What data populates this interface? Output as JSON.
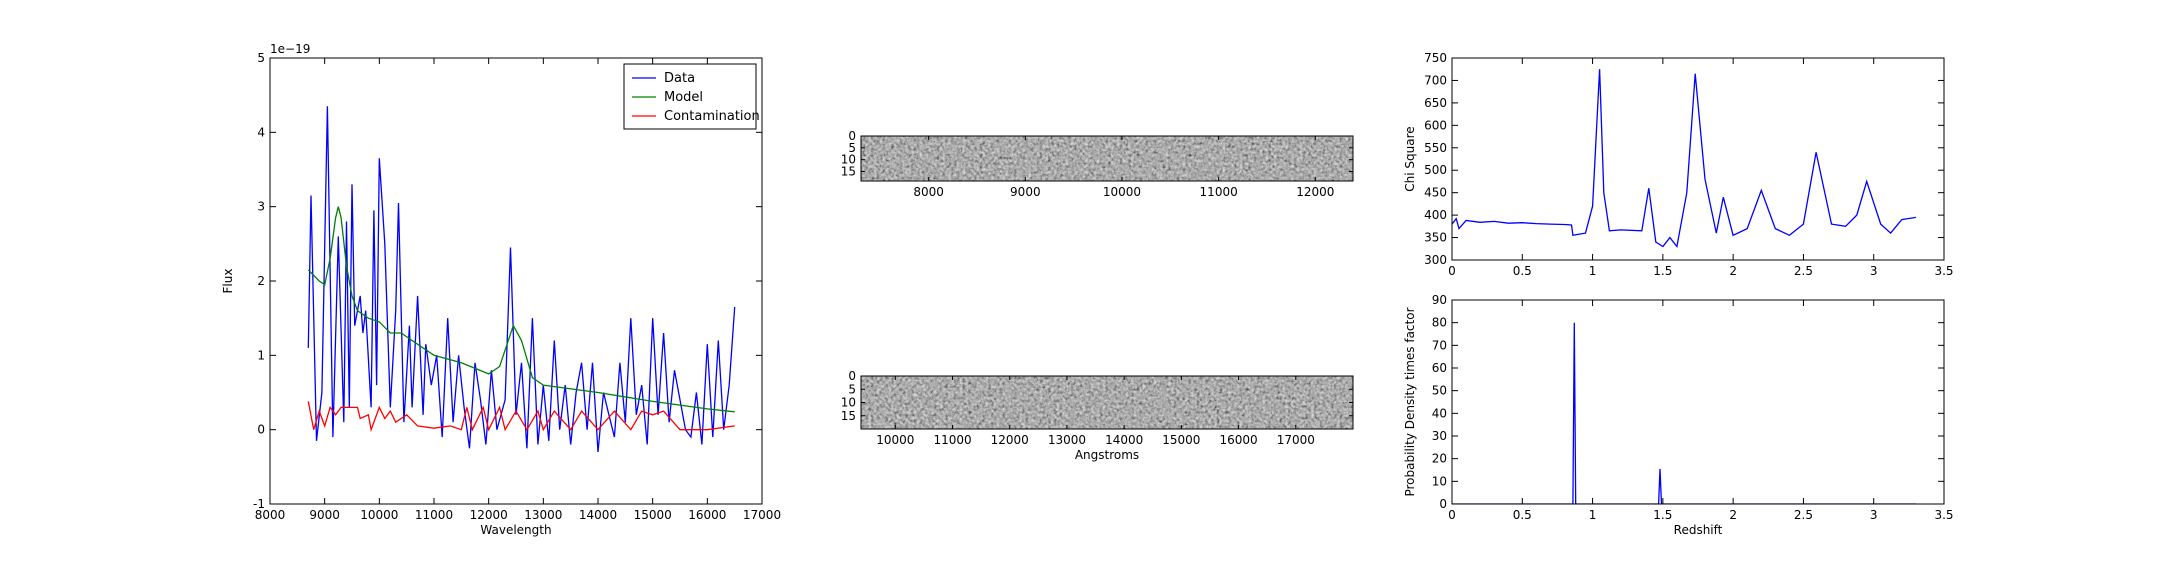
{
  "chart_data": [
    {
      "type": "line",
      "xlabel": "Wavelength",
      "ylabel": "Flux",
      "offset_label": "1e−19",
      "xlim": [
        8000,
        17000
      ],
      "xticks": [
        8000,
        9000,
        10000,
        11000,
        12000,
        13000,
        14000,
        15000,
        16000,
        17000
      ],
      "ylim": [
        -1,
        5
      ],
      "yticks": [
        -1,
        0,
        1,
        2,
        3,
        4,
        5
      ],
      "legend": "upper right",
      "series": [
        {
          "name": "Data",
          "color": "#0000ff",
          "x": [
            8700,
            8750,
            8850,
            8950,
            9050,
            9150,
            9250,
            9350,
            9400,
            9450,
            9500,
            9550,
            9650,
            9700,
            9750,
            9850,
            9900,
            9950,
            10000,
            10100,
            10200,
            10300,
            10350,
            10450,
            10550,
            10600,
            10700,
            10800,
            10850,
            10950,
            11050,
            11150,
            11250,
            11350,
            11450,
            11550,
            11650,
            11750,
            11850,
            11950,
            12050,
            12150,
            12300,
            12400,
            12500,
            12600,
            12700,
            12800,
            12900,
            13000,
            13100,
            13200,
            13300,
            13400,
            13500,
            13600,
            13700,
            13800,
            13900,
            14000,
            14100,
            14200,
            14300,
            14400,
            14500,
            14600,
            14700,
            14800,
            14900,
            15000,
            15100,
            15200,
            15300,
            15400,
            15500,
            15600,
            15700,
            15800,
            15900,
            16000,
            16100,
            16200,
            16300,
            16400,
            16500
          ],
          "values": [
            1.1,
            3.15,
            -0.15,
            0.5,
            4.35,
            -0.1,
            2.6,
            0.1,
            2.8,
            0.3,
            3.3,
            1.4,
            1.8,
            1.3,
            1.6,
            0.3,
            2.95,
            0.6,
            3.65,
            2.5,
            0.3,
            1.6,
            3.05,
            0.1,
            1.4,
            0.3,
            1.8,
            0.2,
            1.15,
            0.6,
            1.0,
            -0.1,
            1.5,
            0.1,
            1.0,
            0.3,
            -0.25,
            0.9,
            0.4,
            -0.2,
            0.8,
            0.0,
            0.4,
            2.45,
            0.2,
            0.9,
            -0.25,
            1.5,
            -0.2,
            0.6,
            -0.15,
            1.2,
            0.0,
            0.6,
            -0.2,
            0.5,
            0.9,
            0.0,
            0.9,
            -0.3,
            0.5,
            0.2,
            -0.1,
            0.9,
            0.1,
            1.5,
            0.2,
            0.6,
            -0.2,
            1.5,
            0.2,
            1.3,
            0.1,
            0.8,
            0.4,
            0.0,
            -0.1,
            0.5,
            -0.2,
            1.15,
            -0.1,
            1.2,
            0.0,
            0.6,
            1.65
          ]
        },
        {
          "name": "Model",
          "color": "#008000",
          "x": [
            8700,
            8900,
            9000,
            9100,
            9200,
            9250,
            9300,
            9400,
            9500,
            9600,
            9800,
            10000,
            10200,
            10400,
            10600,
            10800,
            11000,
            11500,
            12000,
            12200,
            12450,
            12600,
            12800,
            13000,
            14000,
            15000,
            16000,
            16500
          ],
          "values": [
            2.15,
            2.0,
            1.95,
            2.3,
            2.85,
            3.0,
            2.85,
            2.2,
            1.8,
            1.6,
            1.5,
            1.45,
            1.3,
            1.3,
            1.2,
            1.1,
            1.0,
            0.9,
            0.75,
            0.85,
            1.4,
            1.2,
            0.7,
            0.6,
            0.5,
            0.38,
            0.28,
            0.24
          ]
        },
        {
          "name": "Contamination",
          "color": "#ff0000",
          "x": [
            8700,
            8800,
            8900,
            9000,
            9100,
            9200,
            9300,
            9600,
            9650,
            9800,
            9850,
            10000,
            10100,
            10200,
            10300,
            10500,
            10700,
            11000,
            11300,
            11500,
            11600,
            11700,
            11900,
            12000,
            12200,
            12300,
            12500,
            12700,
            12900,
            13000,
            13200,
            13500,
            13700,
            14000,
            14300,
            14600,
            14800,
            15000,
            15200,
            15500,
            16000,
            16500
          ],
          "values": [
            0.38,
            0.0,
            0.25,
            0.05,
            0.3,
            0.2,
            0.3,
            0.3,
            0.15,
            0.2,
            0.0,
            0.3,
            0.15,
            0.25,
            0.1,
            0.2,
            0.05,
            0.02,
            0.05,
            0.0,
            0.3,
            0.0,
            0.3,
            0.0,
            0.3,
            0.0,
            0.25,
            0.0,
            0.25,
            0.0,
            0.25,
            0.0,
            0.25,
            0.0,
            0.25,
            0.0,
            0.25,
            0.2,
            0.25,
            0.0,
            0.0,
            0.05
          ]
        }
      ]
    },
    {
      "type": "image",
      "xlim": [
        7300,
        12390
      ],
      "xticks": [
        8000,
        9000,
        10000,
        11000,
        12000
      ],
      "ylim": [
        0,
        19
      ],
      "yticks": [
        0,
        5,
        10,
        15
      ]
    },
    {
      "type": "image",
      "xlabel": "Angstroms",
      "xlim": [
        9400,
        18000
      ],
      "xticks": [
        10000,
        11000,
        12000,
        13000,
        14000,
        15000,
        16000,
        17000
      ],
      "ylim": [
        0,
        20
      ],
      "yticks": [
        0,
        5,
        10,
        15
      ]
    },
    {
      "type": "line",
      "ylabel": "Chi Square",
      "xlim": [
        0,
        3.5
      ],
      "xticks": [
        0.0,
        0.5,
        1.0,
        1.5,
        2.0,
        2.5,
        3.0,
        3.5
      ],
      "ylim": [
        300,
        750
      ],
      "yticks": [
        300,
        350,
        400,
        450,
        500,
        550,
        600,
        650,
        700,
        750
      ],
      "series": [
        {
          "color": "#0000ff",
          "x": [
            0,
            0.03,
            0.05,
            0.1,
            0.2,
            0.3,
            0.4,
            0.5,
            0.6,
            0.7,
            0.8,
            0.85,
            0.86,
            0.95,
            1.0,
            1.05,
            1.08,
            1.12,
            1.2,
            1.35,
            1.4,
            1.45,
            1.5,
            1.55,
            1.6,
            1.67,
            1.73,
            1.8,
            1.88,
            1.93,
            2.0,
            2.1,
            2.2,
            2.3,
            2.4,
            2.5,
            2.59,
            2.7,
            2.8,
            2.88,
            2.95,
            3.05,
            3.12,
            3.2,
            3.3
          ],
          "values": [
            380,
            392,
            370,
            388,
            384,
            386,
            382,
            383,
            381,
            380,
            379,
            378,
            355,
            360,
            420,
            725,
            450,
            365,
            367,
            365,
            460,
            340,
            330,
            350,
            330,
            450,
            715,
            480,
            360,
            440,
            355,
            370,
            455,
            370,
            355,
            380,
            540,
            380,
            375,
            400,
            475,
            380,
            360,
            390,
            395
          ]
        }
      ]
    },
    {
      "type": "line",
      "xlabel": "Redshift",
      "ylabel": "Probability Density times factor",
      "xlim": [
        0,
        3.5
      ],
      "xticks": [
        0.0,
        0.5,
        1.0,
        1.5,
        2.0,
        2.5,
        3.0,
        3.5
      ],
      "ylim": [
        0,
        90
      ],
      "yticks": [
        0,
        10,
        20,
        30,
        40,
        50,
        60,
        70,
        80,
        90
      ],
      "series": [
        {
          "color": "#0000ff",
          "x": [
            0,
            0.86,
            0.87,
            0.88,
            1.47,
            1.48,
            1.49,
            3.3
          ],
          "values": [
            0,
            0,
            80,
            0,
            0,
            15.5,
            0,
            0
          ]
        }
      ]
    }
  ]
}
